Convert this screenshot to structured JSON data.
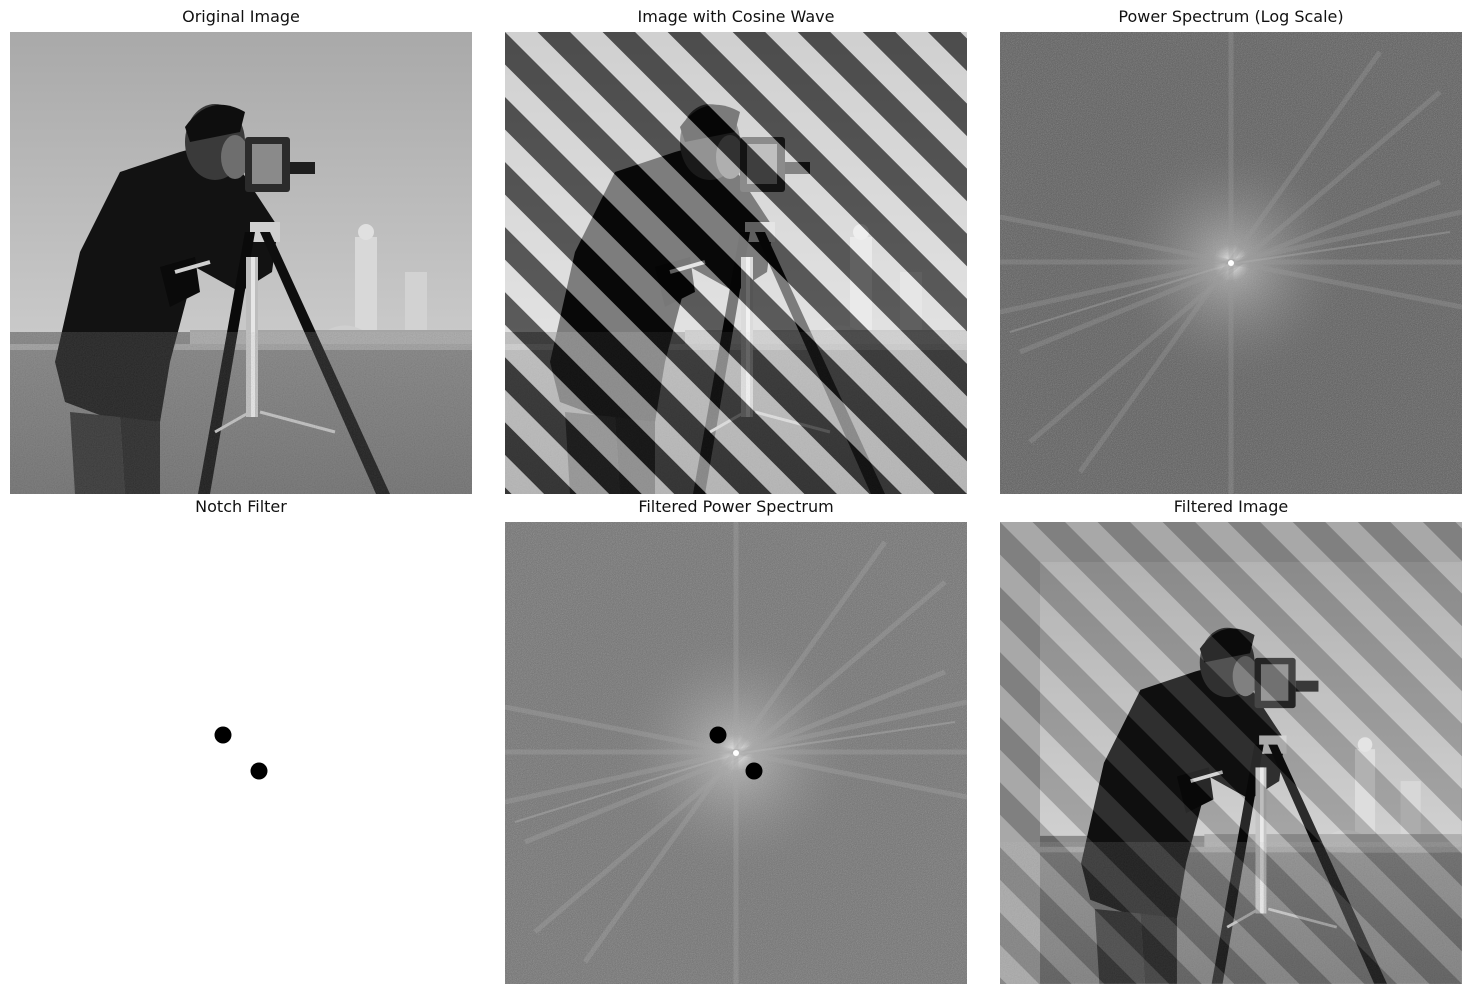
{
  "figure": {
    "panels": [
      {
        "id": "original",
        "title": "Original Image"
      },
      {
        "id": "cosine",
        "title": "Image with Cosine Wave"
      },
      {
        "id": "spectrum",
        "title": "Power Spectrum (Log Scale)"
      },
      {
        "id": "notch",
        "title": "Notch Filter"
      },
      {
        "id": "filtered_spectrum",
        "title": "Filtered Power Spectrum"
      },
      {
        "id": "filtered_image",
        "title": "Filtered Image"
      }
    ]
  },
  "colors": {
    "background": "#ffffff",
    "notch": "#000000",
    "spectrum_base": "#5a5a5a",
    "sky": "#b8b8b8",
    "grass": "#8a8a8a"
  }
}
